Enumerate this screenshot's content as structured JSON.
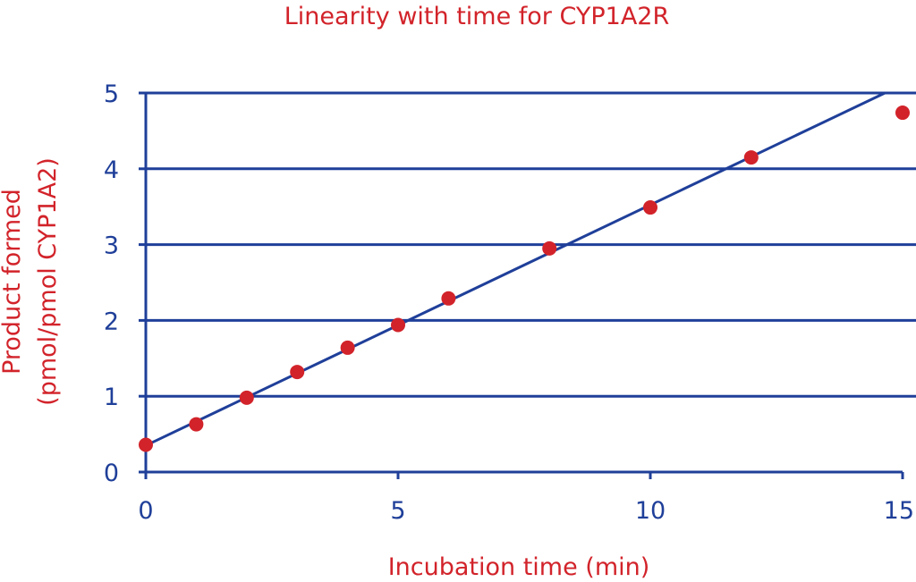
{
  "chart_data": {
    "type": "scatter",
    "title": "Linearity with time for CYP1A2R",
    "xlabel": "Incubation time (min)",
    "ylabel_line1": "Product formed",
    "ylabel_line2": "(pmol/pmol CYP1A2)",
    "xlim": [
      0,
      15
    ],
    "ylim": [
      0,
      5
    ],
    "xticks": [
      "0",
      "5",
      "10",
      "15"
    ],
    "yticks": [
      "0",
      "1",
      "2",
      "3",
      "4",
      "5"
    ],
    "grid": "horizontal",
    "points": [
      {
        "x": 0,
        "y": 0.36
      },
      {
        "x": 1,
        "y": 0.63
      },
      {
        "x": 2,
        "y": 0.98
      },
      {
        "x": 3,
        "y": 1.32
      },
      {
        "x": 4,
        "y": 1.64
      },
      {
        "x": 5,
        "y": 1.94
      },
      {
        "x": 6,
        "y": 2.29
      },
      {
        "x": 8,
        "y": 2.95
      },
      {
        "x": 10,
        "y": 3.49
      },
      {
        "x": 12,
        "y": 4.15
      },
      {
        "x": 15,
        "y": 4.74
      }
    ],
    "fit_line": {
      "x": [
        0,
        14.65
      ],
      "y": [
        0.35,
        5.0
      ]
    },
    "colors": {
      "points": "#d2232a",
      "line": "#1f3f99",
      "grid": "#1f3f99",
      "title": "#d2232a",
      "ticks": "#1f3f99"
    }
  }
}
